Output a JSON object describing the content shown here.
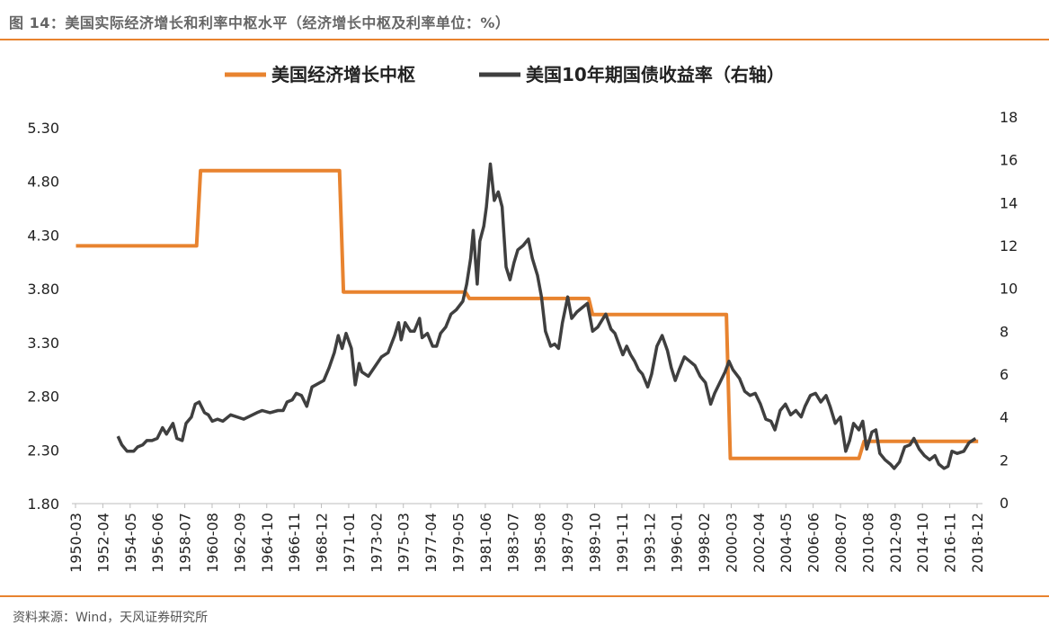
{
  "header": {
    "title": "图 14：美国实际经济增长和利率中枢水平（经济增长中枢及利率单位：%）"
  },
  "footer": {
    "source": "资料来源：Wind，天风证券研究所"
  },
  "colors": {
    "accent": "#e8832f",
    "series_growth": "#e8832f",
    "series_yield": "#3f3f3f",
    "text": "#222222"
  },
  "chart_data": {
    "type": "line",
    "title": "",
    "xlabel": "",
    "ylabel": "",
    "y2label": "",
    "legend_position": "top-center",
    "x_ticks": [
      "1950-03",
      "1952-04",
      "1954-05",
      "1956-06",
      "1958-07",
      "1960-08",
      "1962-09",
      "1964-10",
      "1966-11",
      "1968-12",
      "1971-01",
      "1973-02",
      "1975-03",
      "1977-04",
      "1979-05",
      "1981-06",
      "1983-07",
      "1985-08",
      "1987-09",
      "1989-10",
      "1991-11",
      "1993-12",
      "1996-01",
      "1998-02",
      "2000-03",
      "2002-04",
      "2004-05",
      "2006-06",
      "2008-07",
      "2010-08",
      "2012-09",
      "2014-10",
      "2016-11",
      "2018-12"
    ],
    "y_left": {
      "ticks": [
        "5.30",
        "4.80",
        "4.30",
        "3.80",
        "3.30",
        "2.80",
        "2.30",
        "1.80"
      ],
      "range": [
        1.8,
        5.3
      ]
    },
    "y_right": {
      "ticks": [
        "18",
        "16",
        "14",
        "12",
        "10",
        "8",
        "6",
        "4",
        "2",
        "0"
      ],
      "range": [
        0,
        18
      ]
    },
    "series": [
      {
        "name": "美国经济增长中枢",
        "axis": "left",
        "values": [
          [
            1950.2,
            4.2
          ],
          [
            1959.4,
            4.2
          ],
          [
            1959.7,
            4.9
          ],
          [
            1970.3,
            4.9
          ],
          [
            1970.6,
            3.77
          ],
          [
            1979.9,
            3.77
          ],
          [
            1980.2,
            3.71
          ],
          [
            1989.3,
            3.71
          ],
          [
            1989.6,
            3.56
          ],
          [
            1999.8,
            3.56
          ],
          [
            2000.1,
            2.22
          ],
          [
            2009.9,
            2.22
          ],
          [
            2010.3,
            2.38
          ],
          [
            2019.0,
            2.38
          ]
        ]
      },
      {
        "name": "美国10年期国债收益率（右轴）",
        "axis": "right",
        "values": [
          [
            1953.4,
            3.1
          ],
          [
            1953.7,
            2.7
          ],
          [
            1954.1,
            2.4
          ],
          [
            1954.6,
            2.4
          ],
          [
            1954.9,
            2.6
          ],
          [
            1955.3,
            2.7
          ],
          [
            1955.6,
            2.9
          ],
          [
            1956.0,
            2.9
          ],
          [
            1956.4,
            3.0
          ],
          [
            1956.8,
            3.5
          ],
          [
            1957.1,
            3.2
          ],
          [
            1957.6,
            3.7
          ],
          [
            1957.9,
            3.0
          ],
          [
            1958.3,
            2.9
          ],
          [
            1958.6,
            3.7
          ],
          [
            1959.0,
            4.0
          ],
          [
            1959.3,
            4.6
          ],
          [
            1959.6,
            4.7
          ],
          [
            1960.0,
            4.2
          ],
          [
            1960.3,
            4.1
          ],
          [
            1960.6,
            3.8
          ],
          [
            1961.0,
            3.9
          ],
          [
            1961.4,
            3.8
          ],
          [
            1962.0,
            4.1
          ],
          [
            1963.0,
            3.9
          ],
          [
            1964.0,
            4.2
          ],
          [
            1964.4,
            4.3
          ],
          [
            1965.0,
            4.2
          ],
          [
            1965.6,
            4.3
          ],
          [
            1966.0,
            4.3
          ],
          [
            1966.3,
            4.7
          ],
          [
            1966.7,
            4.8
          ],
          [
            1967.0,
            5.1
          ],
          [
            1967.4,
            5.0
          ],
          [
            1967.8,
            4.5
          ],
          [
            1968.2,
            5.4
          ],
          [
            1969.1,
            5.7
          ],
          [
            1969.5,
            6.3
          ],
          [
            1969.9,
            7.0
          ],
          [
            1970.2,
            7.8
          ],
          [
            1970.5,
            7.2
          ],
          [
            1970.8,
            7.9
          ],
          [
            1971.2,
            7.2
          ],
          [
            1971.5,
            5.5
          ],
          [
            1971.8,
            6.5
          ],
          [
            1972.0,
            6.1
          ],
          [
            1972.5,
            5.9
          ],
          [
            1973.5,
            6.8
          ],
          [
            1974.0,
            7.0
          ],
          [
            1974.5,
            7.8
          ],
          [
            1974.8,
            8.4
          ],
          [
            1975.0,
            7.6
          ],
          [
            1975.3,
            8.4
          ],
          [
            1975.7,
            8.0
          ],
          [
            1976.0,
            8.0
          ],
          [
            1976.4,
            8.6
          ],
          [
            1976.6,
            7.7
          ],
          [
            1977.0,
            7.9
          ],
          [
            1977.4,
            7.3
          ],
          [
            1977.7,
            7.3
          ],
          [
            1978.0,
            7.9
          ],
          [
            1978.4,
            8.2
          ],
          [
            1978.8,
            8.8
          ],
          [
            1979.2,
            9.0
          ],
          [
            1979.7,
            9.4
          ],
          [
            1980.0,
            10.2
          ],
          [
            1980.3,
            11.4
          ],
          [
            1980.5,
            12.7
          ],
          [
            1980.8,
            10.2
          ],
          [
            1981.0,
            12.2
          ],
          [
            1981.3,
            12.9
          ],
          [
            1981.5,
            13.8
          ],
          [
            1981.8,
            15.8
          ],
          [
            1982.1,
            14.1
          ],
          [
            1982.4,
            14.5
          ],
          [
            1982.7,
            13.8
          ],
          [
            1983.0,
            11.0
          ],
          [
            1983.3,
            10.4
          ],
          [
            1983.6,
            11.2
          ],
          [
            1983.9,
            11.8
          ],
          [
            1984.3,
            12.0
          ],
          [
            1984.7,
            12.3
          ],
          [
            1985.0,
            11.4
          ],
          [
            1985.4,
            10.6
          ],
          [
            1985.7,
            9.6
          ],
          [
            1986.0,
            8.0
          ],
          [
            1986.4,
            7.3
          ],
          [
            1986.7,
            7.4
          ],
          [
            1987.0,
            7.2
          ],
          [
            1987.3,
            8.4
          ],
          [
            1987.7,
            9.6
          ],
          [
            1988.0,
            8.6
          ],
          [
            1988.4,
            8.9
          ],
          [
            1988.8,
            9.1
          ],
          [
            1989.2,
            9.3
          ],
          [
            1989.6,
            8.0
          ],
          [
            1990.0,
            8.2
          ],
          [
            1990.6,
            8.8
          ],
          [
            1991.0,
            8.1
          ],
          [
            1991.3,
            7.9
          ],
          [
            1991.6,
            7.4
          ],
          [
            1991.9,
            6.9
          ],
          [
            1992.2,
            7.3
          ],
          [
            1992.5,
            6.9
          ],
          [
            1992.8,
            6.6
          ],
          [
            1993.1,
            6.2
          ],
          [
            1993.4,
            6.0
          ],
          [
            1993.8,
            5.4
          ],
          [
            1994.1,
            6.0
          ],
          [
            1994.5,
            7.3
          ],
          [
            1994.9,
            7.8
          ],
          [
            1995.3,
            7.1
          ],
          [
            1995.6,
            6.3
          ],
          [
            1995.9,
            5.7
          ],
          [
            1996.2,
            6.2
          ],
          [
            1996.6,
            6.8
          ],
          [
            1997.0,
            6.6
          ],
          [
            1997.4,
            6.4
          ],
          [
            1997.8,
            5.9
          ],
          [
            1998.2,
            5.6
          ],
          [
            1998.6,
            4.6
          ],
          [
            1998.9,
            5.1
          ],
          [
            1999.3,
            5.6
          ],
          [
            1999.7,
            6.1
          ],
          [
            2000.0,
            6.6
          ],
          [
            2000.3,
            6.2
          ],
          [
            2000.8,
            5.8
          ],
          [
            2001.2,
            5.2
          ],
          [
            2001.6,
            5.0
          ],
          [
            2002.0,
            5.1
          ],
          [
            2002.4,
            4.6
          ],
          [
            2002.8,
            3.9
          ],
          [
            2003.2,
            3.8
          ],
          [
            2003.5,
            3.4
          ],
          [
            2003.9,
            4.3
          ],
          [
            2004.3,
            4.6
          ],
          [
            2004.7,
            4.1
          ],
          [
            2005.1,
            4.3
          ],
          [
            2005.5,
            4.0
          ],
          [
            2005.8,
            4.5
          ],
          [
            2006.2,
            5.0
          ],
          [
            2006.6,
            5.1
          ],
          [
            2007.0,
            4.7
          ],
          [
            2007.4,
            5.0
          ],
          [
            2007.7,
            4.5
          ],
          [
            2008.1,
            3.7
          ],
          [
            2008.5,
            4.0
          ],
          [
            2008.9,
            2.4
          ],
          [
            2009.2,
            2.9
          ],
          [
            2009.5,
            3.7
          ],
          [
            2009.9,
            3.4
          ],
          [
            2010.2,
            3.8
          ],
          [
            2010.5,
            2.5
          ],
          [
            2010.9,
            3.3
          ],
          [
            2011.2,
            3.4
          ],
          [
            2011.5,
            2.3
          ],
          [
            2011.9,
            2.0
          ],
          [
            2012.3,
            1.8
          ],
          [
            2012.6,
            1.6
          ],
          [
            2013.0,
            1.9
          ],
          [
            2013.4,
            2.6
          ],
          [
            2013.8,
            2.7
          ],
          [
            2014.1,
            3.0
          ],
          [
            2014.5,
            2.5
          ],
          [
            2014.9,
            2.2
          ],
          [
            2015.3,
            2.0
          ],
          [
            2015.7,
            2.2
          ],
          [
            2016.0,
            1.8
          ],
          [
            2016.4,
            1.6
          ],
          [
            2016.7,
            1.7
          ],
          [
            2017.0,
            2.4
          ],
          [
            2017.4,
            2.3
          ],
          [
            2017.9,
            2.4
          ],
          [
            2018.3,
            2.8
          ],
          [
            2018.8,
            3.0
          ]
        ]
      }
    ]
  }
}
